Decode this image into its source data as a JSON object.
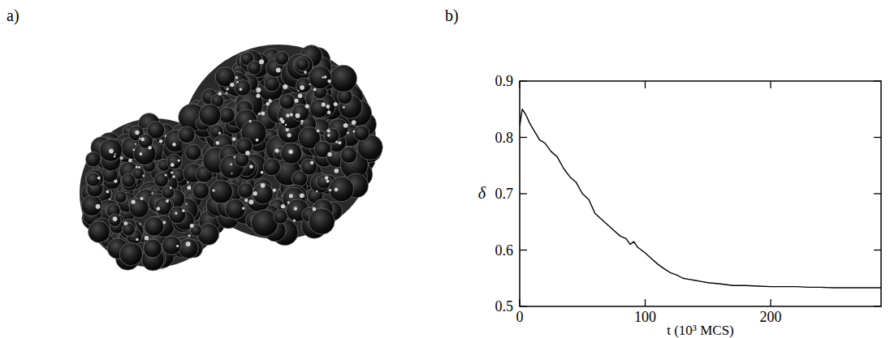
{
  "figure": {
    "panel_labels": [
      "a)",
      "b)"
    ]
  },
  "chart_data": {
    "type": "line",
    "x_label": "t (10³ MCS)",
    "y_label": "δ",
    "x": [
      0,
      2,
      5,
      8,
      12,
      16,
      20,
      25,
      30,
      35,
      40,
      45,
      50,
      55,
      60,
      65,
      70,
      75,
      80,
      85,
      88,
      91,
      94,
      97,
      100,
      105,
      110,
      115,
      120,
      125,
      130,
      135,
      140,
      145,
      150,
      160,
      170,
      180,
      190,
      200,
      210,
      220,
      230,
      240,
      250,
      260,
      270,
      280,
      288
    ],
    "values": [
      0.82,
      0.85,
      0.84,
      0.825,
      0.81,
      0.795,
      0.79,
      0.775,
      0.765,
      0.745,
      0.73,
      0.72,
      0.7,
      0.69,
      0.665,
      0.655,
      0.645,
      0.635,
      0.625,
      0.62,
      0.61,
      0.615,
      0.605,
      0.6,
      0.595,
      0.585,
      0.575,
      0.567,
      0.56,
      0.556,
      0.55,
      0.548,
      0.546,
      0.544,
      0.542,
      0.54,
      0.537,
      0.537,
      0.536,
      0.535,
      0.535,
      0.535,
      0.534,
      0.534,
      0.533,
      0.533,
      0.533,
      0.533,
      0.533
    ],
    "color": "#000000",
    "xlim": [
      0,
      288
    ],
    "xticks": [
      0,
      100,
      200
    ],
    "ylim": [
      0.5,
      0.9
    ],
    "yticks": [
      0.5,
      0.6,
      0.7,
      0.8,
      0.9
    ],
    "grid": false
  }
}
